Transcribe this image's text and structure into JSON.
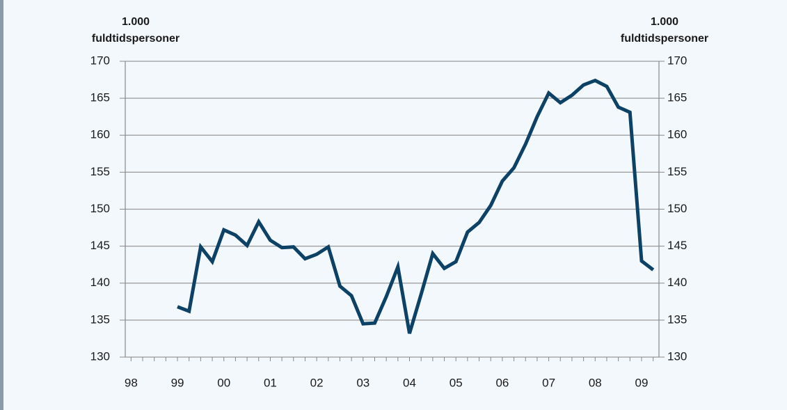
{
  "chart_data": {
    "type": "line",
    "y_label": [
      "1.000",
      "fuldtidspersoner"
    ],
    "y2_label": [
      "1.000",
      "fuldtidspersoner"
    ],
    "categories": [
      "98",
      null,
      null,
      null,
      "99",
      null,
      null,
      null,
      "00",
      null,
      null,
      null,
      "01",
      null,
      null,
      null,
      "02",
      null,
      null,
      null,
      "03",
      null,
      null,
      null,
      "04",
      null,
      null,
      null,
      "05",
      null,
      null,
      null,
      "06",
      null,
      null,
      null,
      "07",
      null,
      null,
      null,
      "08",
      null,
      null,
      null,
      "09",
      null
    ],
    "series": [
      {
        "color": "#0d4266",
        "values": [
          null,
          null,
          null,
          null,
          136.8,
          136.2,
          144.9,
          142.9,
          147.2,
          146.5,
          145.1,
          148.3,
          145.8,
          144.8,
          144.9,
          143.3,
          143.9,
          144.9,
          139.6,
          138.3,
          134.5,
          134.6,
          138.2,
          142.2,
          133.2,
          138.5,
          144.0,
          142.0,
          142.9,
          146.9,
          148.2,
          150.5,
          153.8,
          155.6,
          158.8,
          162.5,
          165.7,
          164.4,
          165.4,
          166.8,
          167.4,
          166.6,
          163.8,
          163.1,
          143.0,
          141.8
        ]
      }
    ],
    "ylim": [
      130,
      170
    ],
    "yticks": [
      130,
      135,
      140,
      145,
      150,
      155,
      160,
      165,
      170
    ],
    "y2lim": [
      130,
      170
    ],
    "y2ticks": [
      130,
      135,
      140,
      145,
      150,
      155,
      160,
      165,
      170
    ],
    "grid": true
  }
}
